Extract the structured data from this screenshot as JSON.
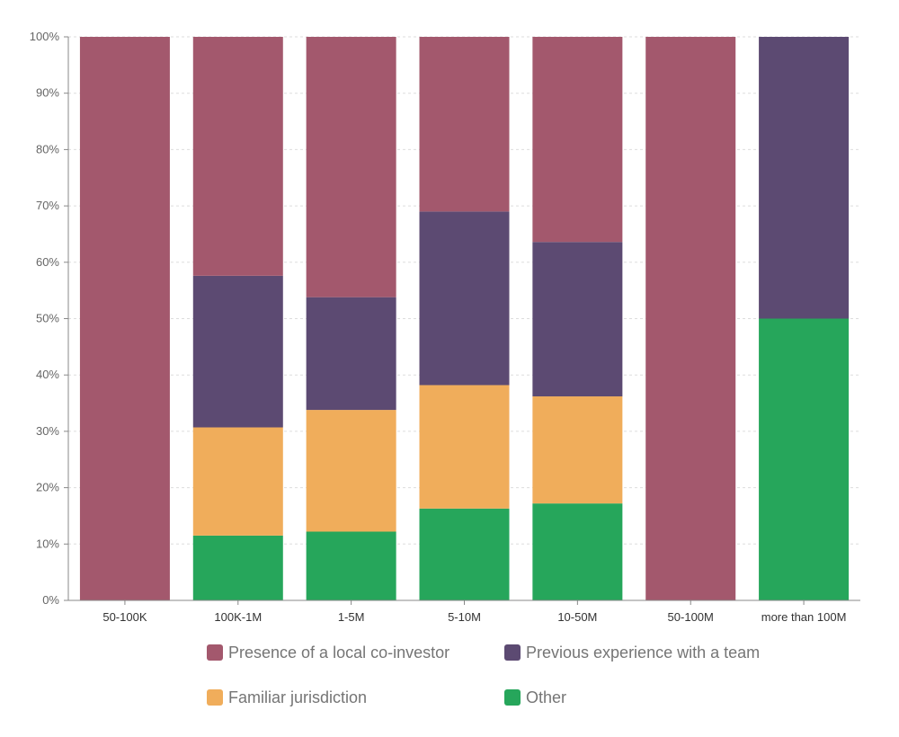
{
  "chart_data": {
    "type": "bar",
    "stacked": true,
    "categories": [
      "50-100K",
      "100K-1M",
      "1-5M",
      "5-10M",
      "10-50M",
      "50-100M",
      "more than 100M"
    ],
    "series": [
      {
        "name": "Other",
        "color": "#26a65b",
        "values": [
          0,
          11.5,
          12.2,
          16.3,
          17.2,
          0,
          50
        ]
      },
      {
        "name": "Familiar jurisdiction",
        "color": "#f0ad5b",
        "values": [
          0,
          19.2,
          21.6,
          21.9,
          19,
          0,
          0
        ]
      },
      {
        "name": "Previous experience with a team",
        "color": "#5c4a72",
        "values": [
          0,
          26.9,
          20,
          30.8,
          27.4,
          0,
          50
        ]
      },
      {
        "name": "Presence of a local co-investor",
        "color": "#a3586d",
        "values": [
          100,
          42.4,
          46.2,
          31,
          36.4,
          100,
          0
        ]
      }
    ],
    "yticks": [
      "0%",
      "10%",
      "20%",
      "30%",
      "40%",
      "50%",
      "60%",
      "70%",
      "80%",
      "90%",
      "100%"
    ],
    "ylim": [
      0,
      100
    ],
    "grid": true,
    "legend_position": "bottom",
    "title": "",
    "xlabel": "",
    "ylabel": ""
  },
  "legend": [
    {
      "label": "Presence of a local co-investor",
      "color": "#a3586d",
      "icon": "square-swatch"
    },
    {
      "label": "Previous experience with a team",
      "color": "#5c4a72",
      "icon": "square-swatch"
    },
    {
      "label": "Familiar jurisdiction",
      "color": "#f0ad5b",
      "icon": "square-swatch"
    },
    {
      "label": "Other",
      "color": "#26a65b",
      "icon": "square-swatch"
    }
  ]
}
